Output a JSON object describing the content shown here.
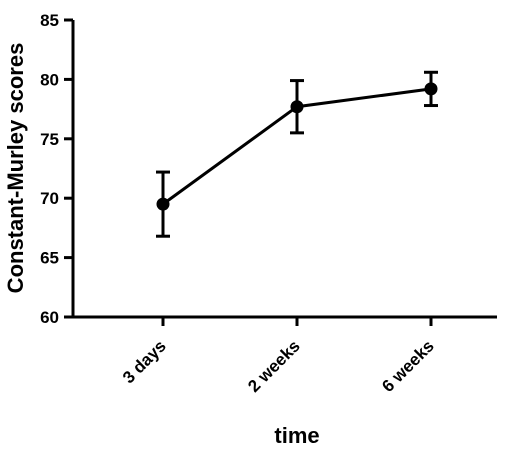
{
  "chart_data": {
    "type": "line",
    "title": "",
    "xlabel": "time",
    "ylabel": "Constant-Murley scores",
    "categories": [
      "3 days",
      "2 weeks",
      "6 weeks"
    ],
    "series": [
      {
        "values": [
          69.5,
          77.7,
          79.2
        ],
        "error_lower": [
          66.8,
          75.5,
          77.8
        ],
        "error_upper": [
          72.2,
          79.9,
          80.6
        ]
      }
    ],
    "ylim": [
      60,
      85
    ],
    "yticks": [
      60,
      65,
      70,
      75,
      80,
      85
    ],
    "grid": false,
    "legend": "none"
  }
}
